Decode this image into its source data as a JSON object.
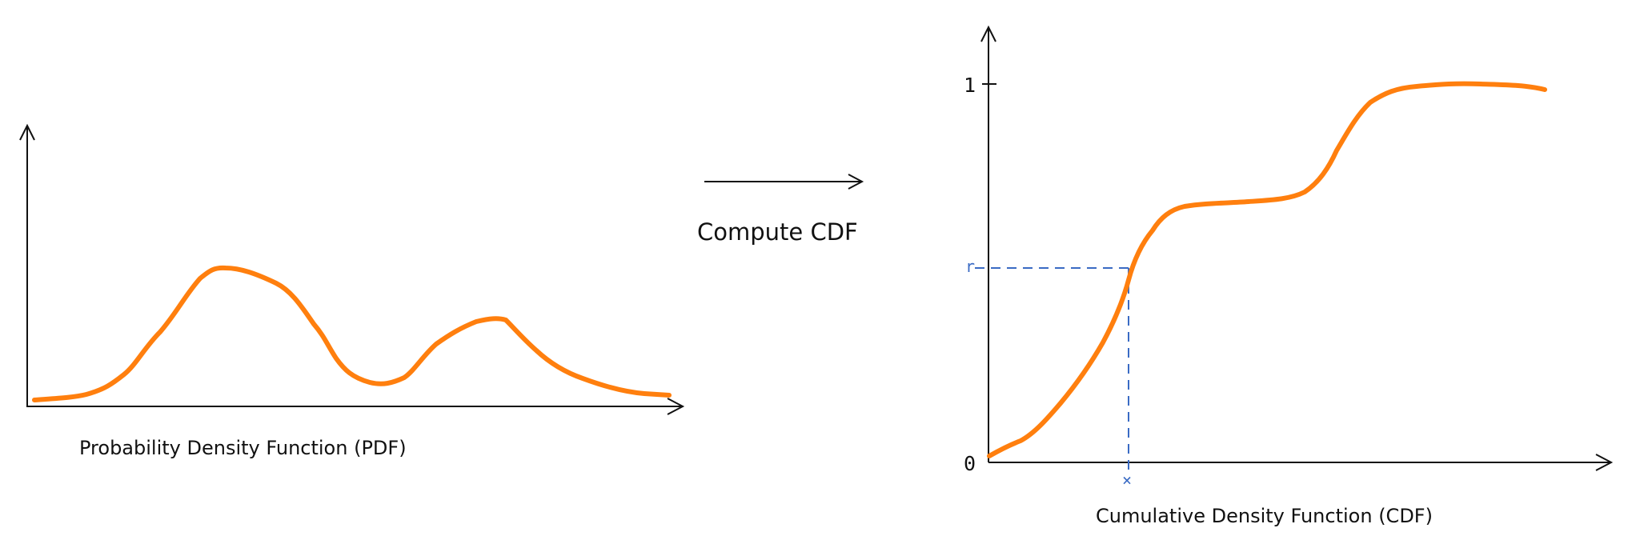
{
  "pdf_panel": {
    "caption": "Probability Density Function (PDF)"
  },
  "transform": {
    "label": "Compute CDF"
  },
  "cdf_panel": {
    "caption": "Cumulative Density Function (CDF)",
    "y_tick_top": "1",
    "y_tick_bottom": "0",
    "r_label": "r",
    "x_marker": "×"
  },
  "colors": {
    "curve": "#ff7f0e",
    "guide": "#3a6bc4",
    "axis": "#111111"
  }
}
